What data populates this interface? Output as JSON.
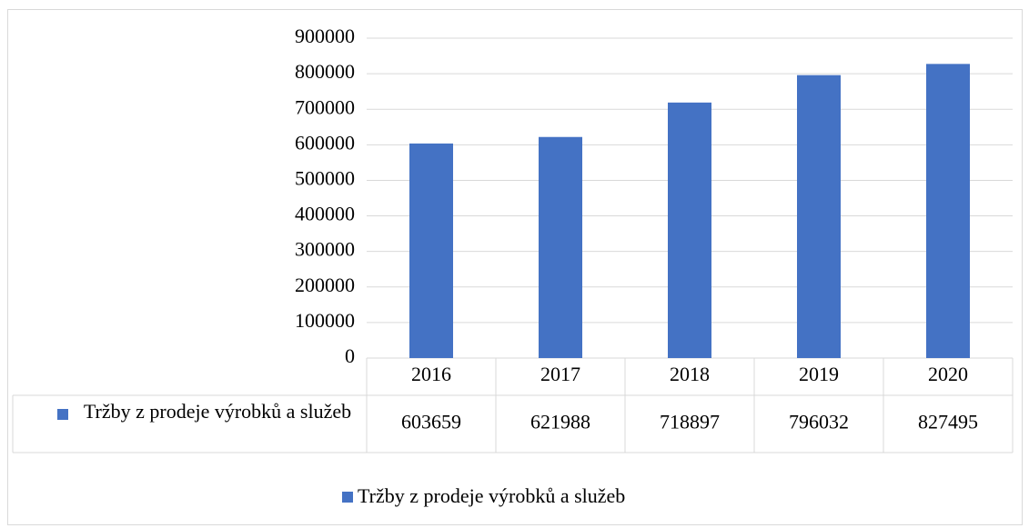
{
  "chart_data": {
    "type": "bar",
    "categories": [
      "2016",
      "2017",
      "2018",
      "2019",
      "2020"
    ],
    "series": [
      {
        "name": "Tržby z prodeje výrobků a služeb",
        "color": "#4472c4",
        "values": [
          603659,
          621988,
          718897,
          796032,
          827495
        ]
      }
    ],
    "ylim": [
      0,
      900000
    ],
    "yticks": [
      0,
      100000,
      200000,
      300000,
      400000,
      500000,
      600000,
      700000,
      800000,
      900000
    ],
    "grid": true,
    "data_table": true,
    "legend": "bottom"
  }
}
